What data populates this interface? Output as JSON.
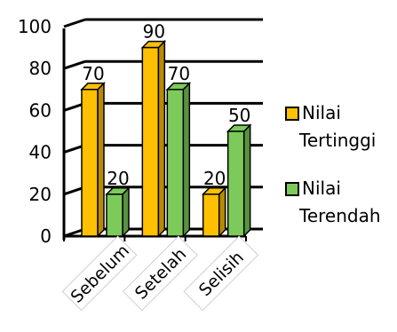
{
  "chart_data": {
    "type": "bar",
    "style": "3d-clustered-column",
    "categories": [
      "Sebelum",
      "Setelah",
      "Selisih"
    ],
    "series": [
      {
        "name": "Nilai Tertinggi",
        "values": [
          70,
          90,
          20
        ],
        "color": "#FFC000"
      },
      {
        "name": "Nilai Terendah",
        "values": [
          20,
          70,
          50
        ],
        "color": "#7CCB5A"
      }
    ],
    "ylim": [
      0,
      100
    ],
    "yticks": [
      0,
      20,
      40,
      60,
      80,
      100
    ],
    "grid": true,
    "legend_position": "right",
    "legend_lines": [
      [
        "Nilai",
        "Tertinggi"
      ],
      [
        "Nilai",
        "Terendah"
      ]
    ],
    "data_labels": true
  }
}
